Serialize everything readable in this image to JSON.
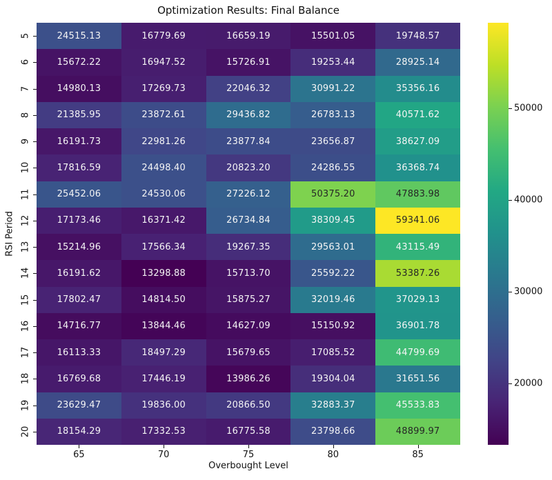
{
  "chart_data": {
    "type": "heatmap",
    "title": "Optimization Results: Final Balance",
    "xlabel": "Overbought Level",
    "ylabel": "RSI Period",
    "x_categories": [
      "65",
      "70",
      "75",
      "80",
      "85"
    ],
    "y_categories": [
      "5",
      "6",
      "7",
      "8",
      "9",
      "10",
      "11",
      "12",
      "13",
      "14",
      "15",
      "16",
      "17",
      "18",
      "19",
      "20"
    ],
    "values": [
      [
        24515.13,
        16779.69,
        16659.19,
        15501.05,
        19748.57
      ],
      [
        15672.22,
        16947.52,
        15726.91,
        19253.44,
        28925.14
      ],
      [
        14980.13,
        17269.73,
        22046.32,
        30991.22,
        35356.16
      ],
      [
        21385.95,
        23872.61,
        29436.82,
        26783.13,
        40571.62
      ],
      [
        16191.73,
        22981.26,
        23877.84,
        23656.87,
        38627.09
      ],
      [
        17816.59,
        24498.4,
        20823.2,
        24286.55,
        36368.74
      ],
      [
        25452.06,
        24530.06,
        27226.12,
        50375.2,
        47883.98
      ],
      [
        17173.46,
        16371.42,
        26734.84,
        38309.45,
        59341.06
      ],
      [
        15214.96,
        17566.34,
        19267.35,
        29563.01,
        43115.49
      ],
      [
        16191.62,
        13298.88,
        15713.7,
        25592.22,
        53387.26
      ],
      [
        17802.47,
        14814.5,
        15875.27,
        32019.46,
        37029.13
      ],
      [
        14716.77,
        13844.46,
        14627.09,
        15150.92,
        36901.78
      ],
      [
        16113.33,
        18497.29,
        15679.65,
        17085.52,
        44799.69
      ],
      [
        16769.68,
        17446.19,
        13986.26,
        19304.04,
        31651.56
      ],
      [
        23629.47,
        19836.0,
        20866.5,
        32883.37,
        45533.83
      ],
      [
        18154.29,
        17332.53,
        16775.58,
        23798.66,
        48899.97
      ]
    ],
    "value_format": "2-decimals",
    "colormap": "viridis",
    "colorbar_ticks": [
      20000,
      30000,
      40000,
      50000
    ],
    "legend_position": "right-colorbar",
    "grid": false
  },
  "colors": {
    "background": "#ffffff",
    "annotation_light": "#f5f5f5",
    "annotation_dark": "#262626",
    "axis_text": "#111111",
    "viridis_min": "#440154",
    "viridis_max": "#fde725"
  }
}
